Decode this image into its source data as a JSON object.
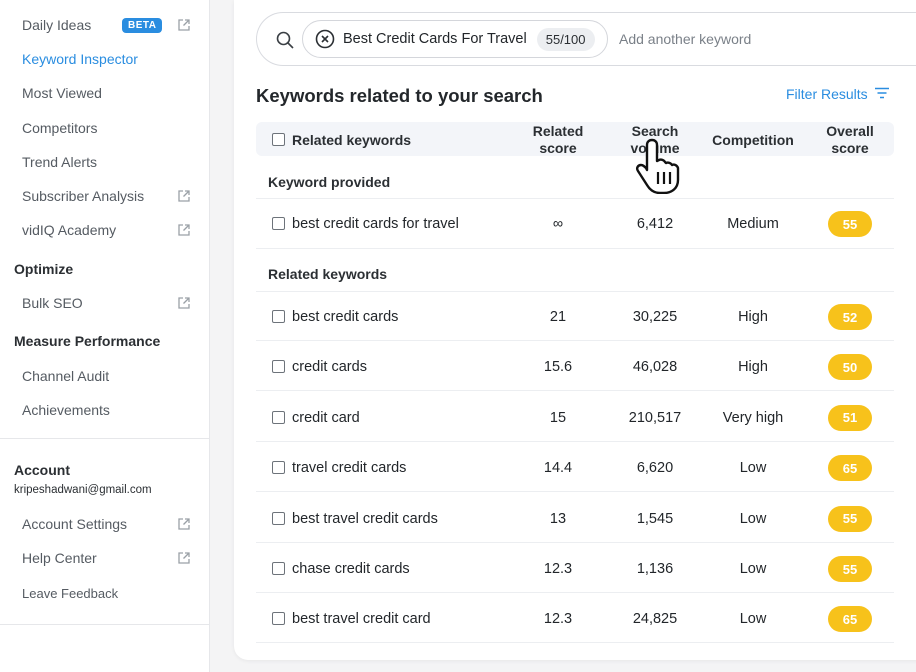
{
  "sidebar": {
    "items": [
      {
        "label": "Daily Ideas",
        "badge": "BETA",
        "external": true,
        "active": false
      },
      {
        "label": "Keyword Inspector",
        "external": false,
        "active": true
      },
      {
        "label": "Most Viewed",
        "external": false,
        "active": false
      },
      {
        "label": "Competitors",
        "external": false,
        "active": false
      },
      {
        "label": "Trend Alerts",
        "external": false,
        "active": false
      },
      {
        "label": "Subscriber Analysis",
        "external": true,
        "active": false
      },
      {
        "label": "vidIQ Academy",
        "external": true,
        "active": false
      }
    ],
    "optimize": {
      "heading": "Optimize",
      "items": [
        {
          "label": "Bulk SEO",
          "external": true
        }
      ]
    },
    "measure": {
      "heading": "Measure Performance",
      "items": [
        {
          "label": "Channel Audit"
        },
        {
          "label": "Achievements"
        }
      ]
    },
    "account": {
      "heading": "Account",
      "email": "kripeshadwani@gmail.com",
      "items": [
        {
          "label": "Account Settings",
          "external": true
        },
        {
          "label": "Help Center",
          "external": true
        },
        {
          "label": "Leave Feedback",
          "external": false
        }
      ]
    }
  },
  "search": {
    "chip_label": "Best Credit Cards For Travel",
    "chip_score": "55/100",
    "placeholder": "Add another keyword",
    "icon": "search-icon"
  },
  "main": {
    "title": "Keywords related to your search",
    "filter_label": "Filter Results",
    "columns": {
      "keyword": "Related keywords",
      "related_score": "Related score",
      "search_volume": "Search volume",
      "competition": "Competition",
      "overall_score": "Overall score"
    },
    "provided_label": "Keyword provided",
    "related_label": "Related keywords",
    "provided": [
      {
        "keyword": "best credit cards for travel",
        "related": "∞",
        "volume": "6,412",
        "competition": "Medium",
        "score": "55"
      }
    ],
    "related": [
      {
        "keyword": "best credit cards",
        "related": "21",
        "volume": "30,225",
        "competition": "High",
        "score": "52"
      },
      {
        "keyword": "credit cards",
        "related": "15.6",
        "volume": "46,028",
        "competition": "High",
        "score": "50"
      },
      {
        "keyword": "credit card",
        "related": "15",
        "volume": "210,517",
        "competition": "Very high",
        "score": "51"
      },
      {
        "keyword": "travel credit cards",
        "related": "14.4",
        "volume": "6,620",
        "competition": "Low",
        "score": "65"
      },
      {
        "keyword": "best travel credit cards",
        "related": "13",
        "volume": "1,545",
        "competition": "Low",
        "score": "55"
      },
      {
        "keyword": "chase credit cards",
        "related": "12.3",
        "volume": "1,136",
        "competition": "Low",
        "score": "55"
      },
      {
        "keyword": "best travel credit card",
        "related": "12.3",
        "volume": "24,825",
        "competition": "Low",
        "score": "65"
      }
    ]
  },
  "colors": {
    "accent": "#2a8de0",
    "score_yellow": "#f7c21b"
  }
}
